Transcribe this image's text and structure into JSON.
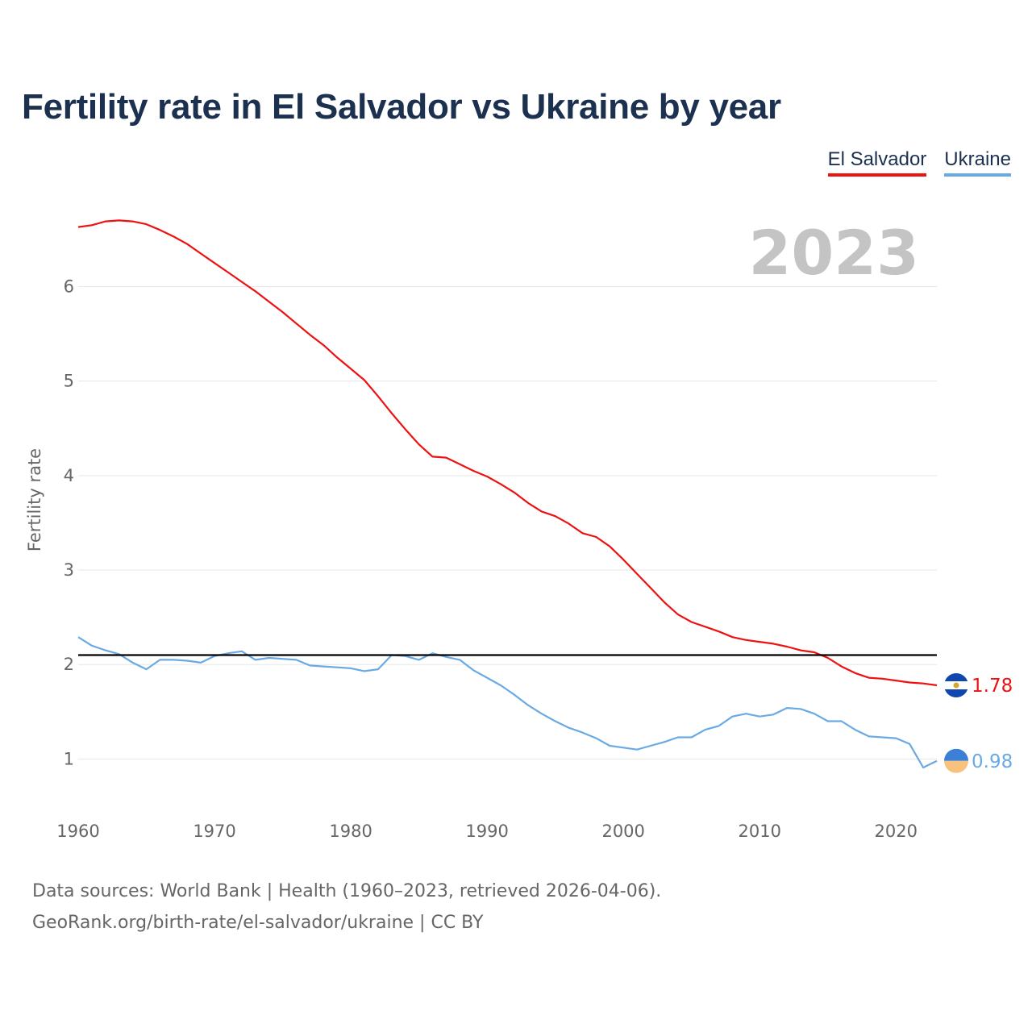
{
  "title": "Fertility rate in El Salvador vs Ukraine by year",
  "legend": [
    {
      "name": "El Salvador",
      "color": "#ee1111"
    },
    {
      "name": "Ukraine",
      "color": "#6aaae4"
    }
  ],
  "current_year": "2023",
  "footer": {
    "source": "Data sources: World Bank | Health (1960–2023, retrieved 2026-04-06).",
    "attribution": "GeoRank.org/birth-rate/el-salvador/ukraine | CC BY"
  },
  "chart_data": {
    "type": "line",
    "title": "Fertility rate in El Salvador vs Ukraine by year",
    "xlabel": "",
    "ylabel": "Fertility rate",
    "xlim": [
      1960,
      2023
    ],
    "ylim": [
      0.5,
      6.9
    ],
    "x_ticks": [
      1960,
      1970,
      1980,
      1990,
      2000,
      2010,
      2020
    ],
    "y_ticks": [
      1,
      2,
      3,
      4,
      5,
      6
    ],
    "grid": true,
    "reference_line": {
      "value": 2.1,
      "color": "#000000"
    },
    "x": [
      1960,
      1961,
      1962,
      1963,
      1964,
      1965,
      1966,
      1967,
      1968,
      1969,
      1970,
      1971,
      1972,
      1973,
      1974,
      1975,
      1976,
      1977,
      1978,
      1979,
      1980,
      1981,
      1982,
      1983,
      1984,
      1985,
      1986,
      1987,
      1988,
      1989,
      1990,
      1991,
      1992,
      1993,
      1994,
      1995,
      1996,
      1997,
      1998,
      1999,
      2000,
      2001,
      2002,
      2003,
      2004,
      2005,
      2006,
      2007,
      2008,
      2009,
      2010,
      2011,
      2012,
      2013,
      2014,
      2015,
      2016,
      2017,
      2018,
      2019,
      2020,
      2021,
      2022,
      2023
    ],
    "series": [
      {
        "name": "El Salvador",
        "color": "#ee1111",
        "end_label": "1.78",
        "values": [
          6.63,
          6.65,
          6.69,
          6.7,
          6.69,
          6.66,
          6.6,
          6.53,
          6.45,
          6.35,
          6.25,
          6.15,
          6.05,
          5.95,
          5.84,
          5.73,
          5.61,
          5.49,
          5.38,
          5.25,
          5.13,
          5.01,
          4.84,
          4.66,
          4.49,
          4.33,
          4.2,
          4.19,
          4.12,
          4.05,
          3.99,
          3.91,
          3.82,
          3.71,
          3.62,
          3.57,
          3.49,
          3.39,
          3.35,
          3.25,
          3.11,
          2.96,
          2.81,
          2.66,
          2.53,
          2.45,
          2.4,
          2.35,
          2.29,
          2.26,
          2.24,
          2.22,
          2.19,
          2.15,
          2.13,
          2.07,
          1.98,
          1.91,
          1.86,
          1.85,
          1.83,
          1.81,
          1.8,
          1.78
        ]
      },
      {
        "name": "Ukraine",
        "color": "#6aaae4",
        "end_label": "0.98",
        "values": [
          2.29,
          2.2,
          2.15,
          2.11,
          2.02,
          1.95,
          2.05,
          2.05,
          2.04,
          2.02,
          2.09,
          2.12,
          2.14,
          2.05,
          2.07,
          2.06,
          2.05,
          1.99,
          1.98,
          1.97,
          1.96,
          1.93,
          1.95,
          2.1,
          2.09,
          2.05,
          2.12,
          2.08,
          2.05,
          1.94,
          1.86,
          1.78,
          1.68,
          1.57,
          1.48,
          1.4,
          1.33,
          1.28,
          1.22,
          1.14,
          1.12,
          1.1,
          1.14,
          1.18,
          1.23,
          1.23,
          1.31,
          1.35,
          1.45,
          1.48,
          1.45,
          1.47,
          1.54,
          1.53,
          1.48,
          1.4,
          1.4,
          1.31,
          1.24,
          1.23,
          1.22,
          1.16,
          0.91,
          0.98
        ]
      }
    ]
  }
}
